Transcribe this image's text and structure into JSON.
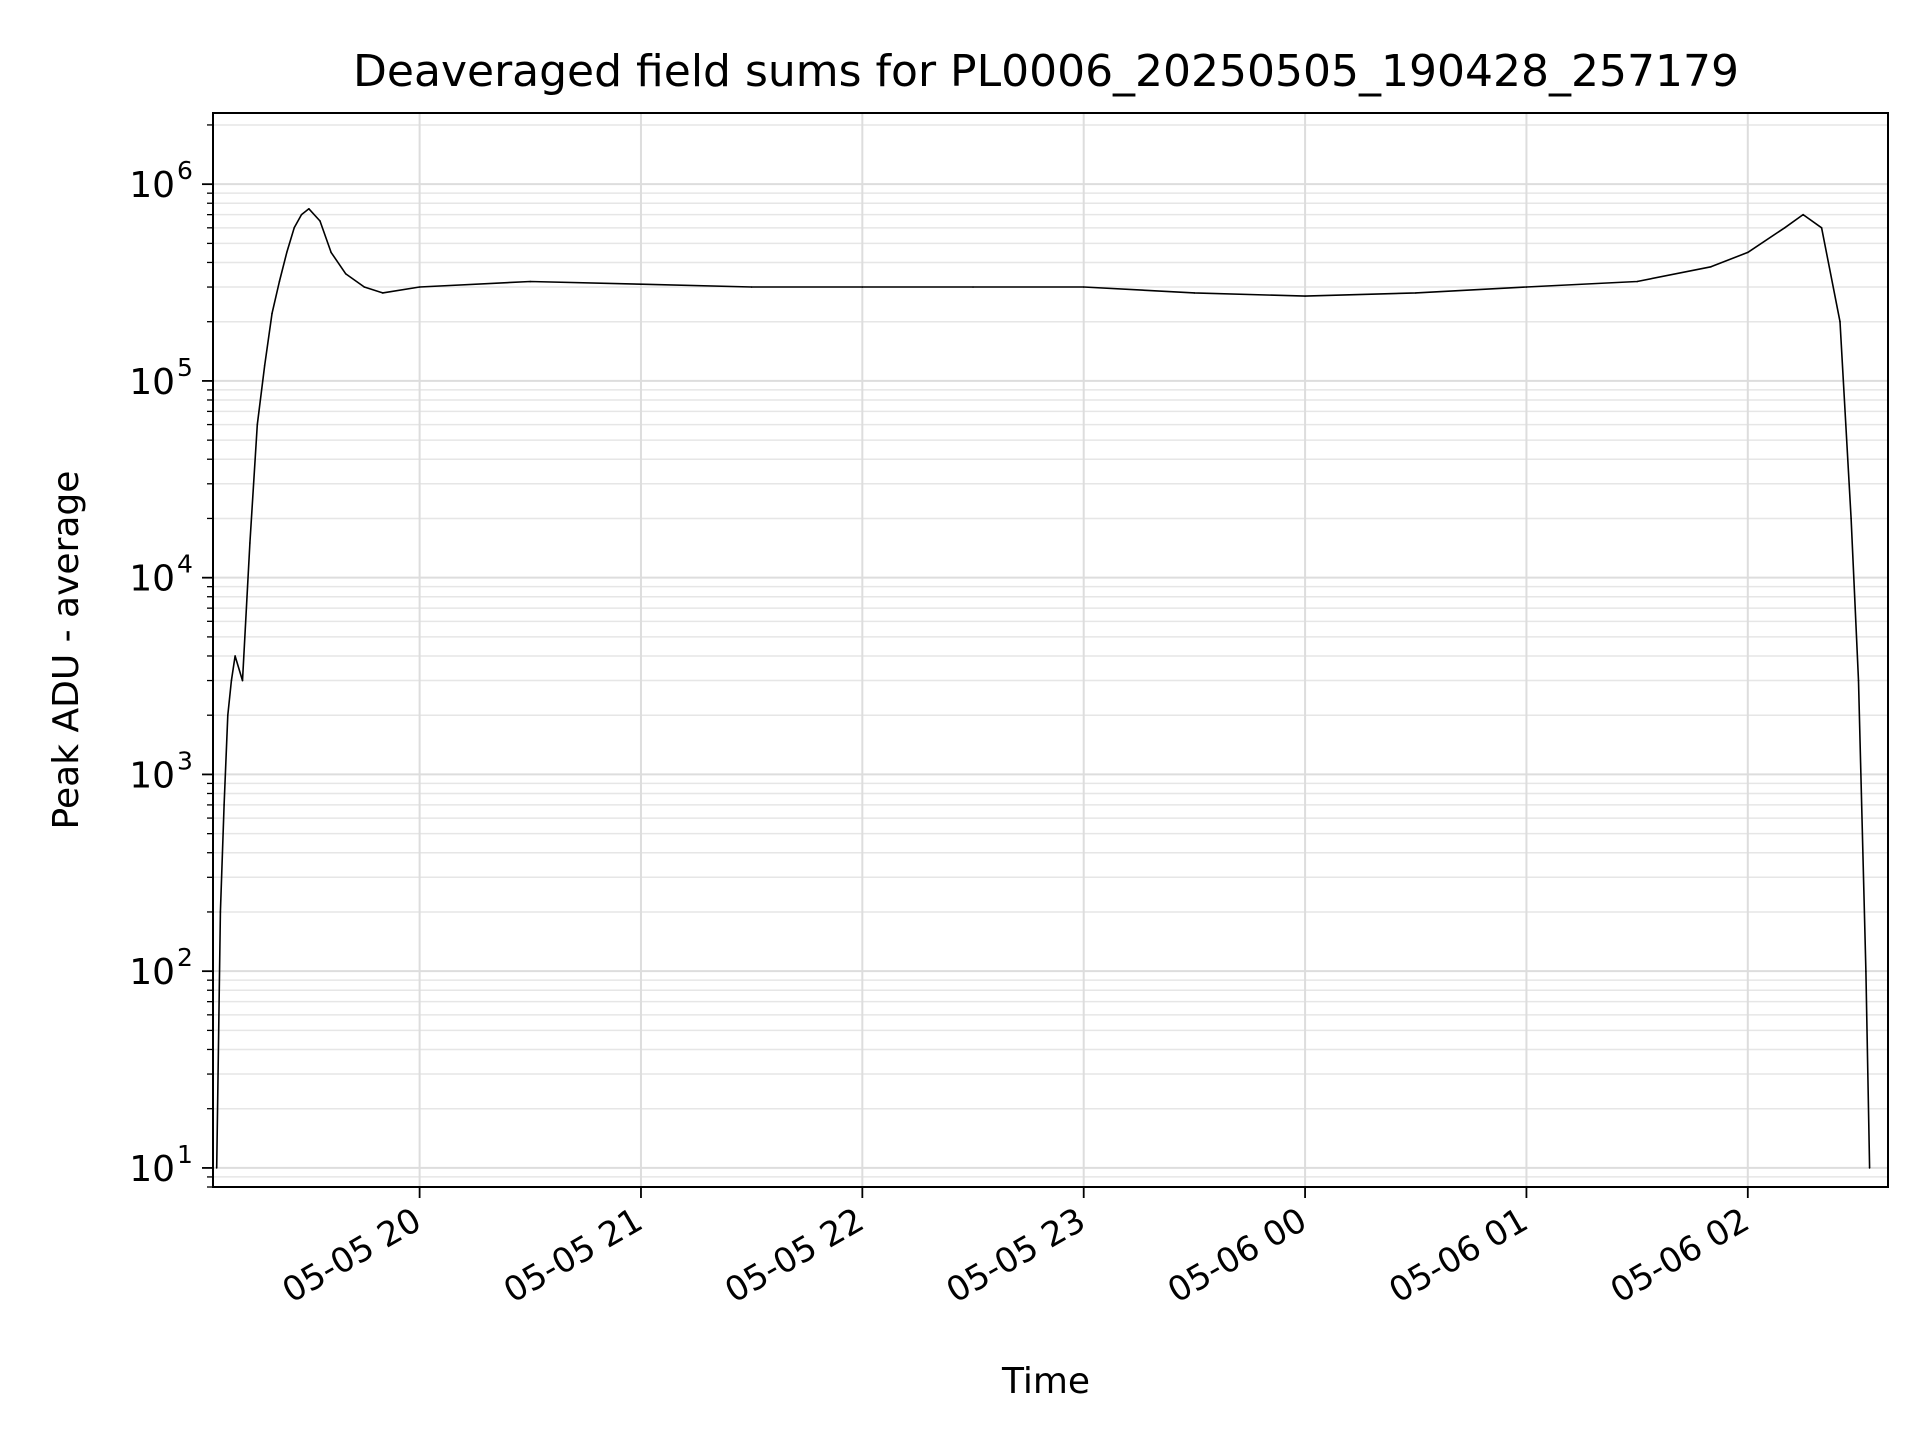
{
  "chart_data": {
    "type": "line",
    "title": "Deaveraged field sums for PL0006_20250505_190428_257179",
    "xlabel": "Time",
    "ylabel": "Peak ADU - average",
    "yscale": "log",
    "grid": true,
    "legend": "none",
    "x_range": [
      "05-05 19:04",
      "05-06 02:38"
    ],
    "ylim": [
      8,
      2300000
    ],
    "x_ticks": [
      {
        "label": "05-05 20",
        "time": "05-05 20:00"
      },
      {
        "label": "05-05 21",
        "time": "05-05 21:00"
      },
      {
        "label": "05-05 22",
        "time": "05-05 22:00"
      },
      {
        "label": "05-05 23",
        "time": "05-05 23:00"
      },
      {
        "label": "05-06 00",
        "time": "05-06 00:00"
      },
      {
        "label": "05-06 01",
        "time": "05-06 01:00"
      },
      {
        "label": "05-06 02",
        "time": "05-06 02:00"
      }
    ],
    "y_ticks": [
      {
        "base": "10",
        "exp": "1",
        "value": 10
      },
      {
        "base": "10",
        "exp": "2",
        "value": 100
      },
      {
        "base": "10",
        "exp": "3",
        "value": 1000
      },
      {
        "base": "10",
        "exp": "4",
        "value": 10000
      },
      {
        "base": "10",
        "exp": "5",
        "value": 100000
      },
      {
        "base": "10",
        "exp": "6",
        "value": 1000000
      }
    ],
    "series": [
      {
        "line_color": "#000000",
        "x": [
          "05-05 19:05",
          "05-05 19:06",
          "05-05 19:07",
          "05-05 19:08",
          "05-05 19:09",
          "05-05 19:10",
          "05-05 19:12",
          "05-05 19:14",
          "05-05 19:16",
          "05-05 19:18",
          "05-05 19:20",
          "05-05 19:22",
          "05-05 19:24",
          "05-05 19:26",
          "05-05 19:28",
          "05-05 19:30",
          "05-05 19:33",
          "05-05 19:36",
          "05-05 19:40",
          "05-05 19:45",
          "05-05 19:50",
          "05-05 20:00",
          "05-05 20:30",
          "05-05 21:00",
          "05-05 21:30",
          "05-05 22:00",
          "05-05 22:30",
          "05-05 23:00",
          "05-05 23:30",
          "05-06 00:00",
          "05-06 00:30",
          "05-06 01:00",
          "05-06 01:30",
          "05-06 01:50",
          "05-06 02:00",
          "05-06 02:10",
          "05-06 02:15",
          "05-06 02:20",
          "05-06 02:25",
          "05-06 02:28",
          "05-06 02:30",
          "05-06 02:32",
          "05-06 02:33"
        ],
        "y": [
          10,
          200,
          700,
          2000,
          3000,
          4000,
          3000,
          15000,
          60000,
          120000,
          220000,
          320000,
          450000,
          600000,
          700000,
          750000,
          650000,
          450000,
          350000,
          300000,
          280000,
          300000,
          320000,
          310000,
          300000,
          300000,
          300000,
          300000,
          280000,
          270000,
          280000,
          300000,
          320000,
          380000,
          450000,
          600000,
          700000,
          600000,
          200000,
          20000,
          3000,
          100,
          10
        ]
      }
    ]
  }
}
